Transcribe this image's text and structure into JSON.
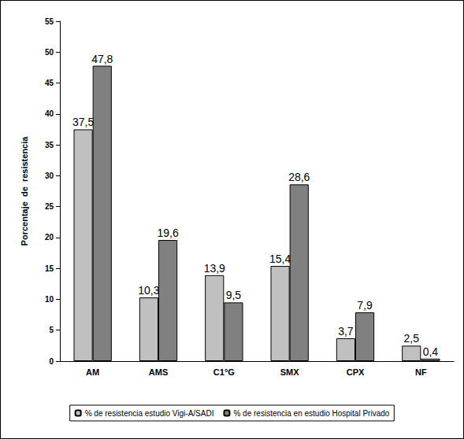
{
  "chart_data": {
    "type": "bar",
    "categories": [
      "AM",
      "AMS",
      "C1°G",
      "SMX",
      "CPX",
      "NF"
    ],
    "series": [
      {
        "name": "% de resistencia estudio Vigi-A/SADI",
        "color": "#c0c0c0",
        "values": [
          37.5,
          10.3,
          13.9,
          15.4,
          3.7,
          2.5
        ],
        "value_labels": [
          "37,5",
          "10,3",
          "13,9",
          "15,4",
          "3,7",
          "2,5"
        ]
      },
      {
        "name": "% de resistencia en estudio Hospital Privado",
        "color": "#808080",
        "values": [
          47.8,
          19.6,
          9.5,
          28.6,
          7.9,
          0.4
        ],
        "value_labels": [
          "47,8",
          "19,6",
          "9,5",
          "28,6",
          "7,9",
          "0,4"
        ]
      }
    ],
    "y_label": "Porcentaje  de  resistencia",
    "ylim": [
      0,
      55
    ],
    "yticks": [
      0,
      5,
      10,
      15,
      20,
      25,
      30,
      35,
      40,
      45,
      50,
      55
    ],
    "grid": false,
    "legend": "bottom",
    "data_labels": true
  }
}
